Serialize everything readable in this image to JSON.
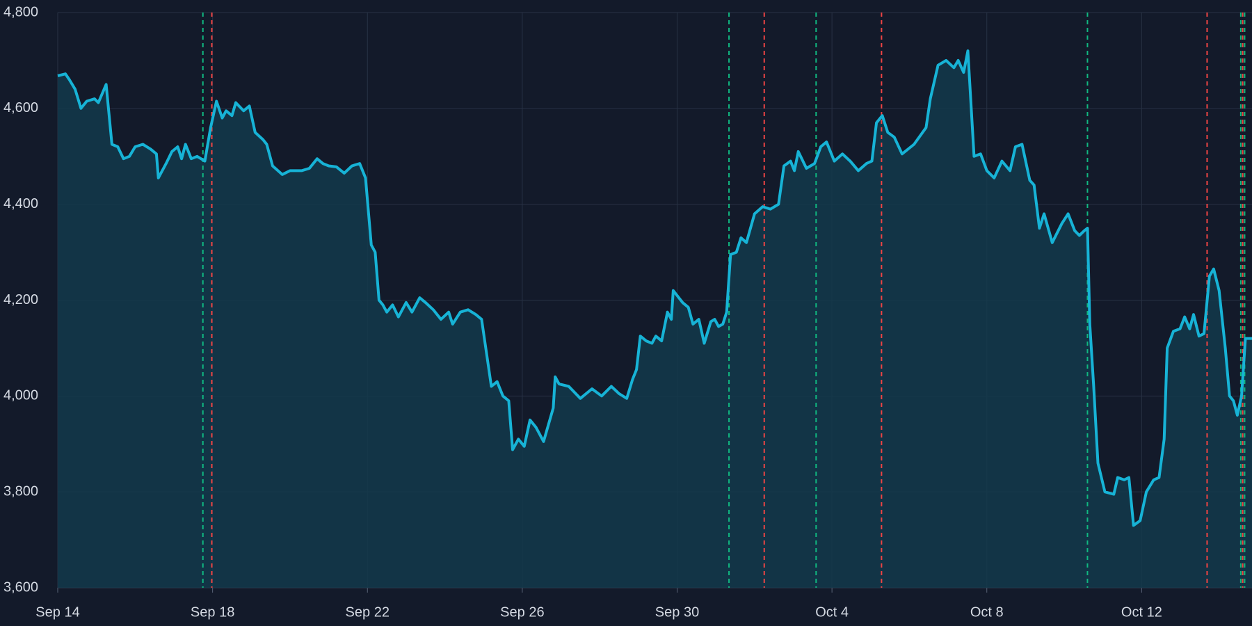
{
  "chart_data": {
    "type": "area",
    "color": "#17b3d6",
    "fill": "#13394b",
    "grid": true,
    "xlim": [
      0,
      30.85
    ],
    "xticks": [
      {
        "value": 0,
        "label": "Sep 14"
      },
      {
        "value": 4,
        "label": "Sep 18"
      },
      {
        "value": 8,
        "label": "Sep 22"
      },
      {
        "value": 12,
        "label": "Sep 26"
      },
      {
        "value": 16,
        "label": "Sep 30"
      },
      {
        "value": 20,
        "label": "Oct 4"
      },
      {
        "value": 24,
        "label": "Oct 8"
      },
      {
        "value": 28,
        "label": "Oct 12"
      }
    ],
    "ylim": [
      3600,
      4800
    ],
    "yticks": [
      {
        "value": 3600,
        "label": "3,600"
      },
      {
        "value": 3800,
        "label": "3,800"
      },
      {
        "value": 4000,
        "label": "4,000"
      },
      {
        "value": 4200,
        "label": "4,200"
      },
      {
        "value": 4400,
        "label": "4,400"
      },
      {
        "value": 4600,
        "label": "4,600"
      },
      {
        "value": 4800,
        "label": "4,800"
      }
    ],
    "x": [
      0,
      0.2,
      0.3,
      0.45,
      0.6,
      0.75,
      0.95,
      1.05,
      1.25,
      1.4,
      1.55,
      1.7,
      1.85,
      2.0,
      2.2,
      2.4,
      2.55,
      2.6,
      2.8,
      2.95,
      3.1,
      3.2,
      3.3,
      3.45,
      3.6,
      3.8,
      3.95,
      4.1,
      4.25,
      4.35,
      4.5,
      4.6,
      4.8,
      4.95,
      5.1,
      5.3,
      5.4,
      5.55,
      5.8,
      6.0,
      6.3,
      6.5,
      6.7,
      6.85,
      7.0,
      7.2,
      7.4,
      7.6,
      7.8,
      7.95,
      8.1,
      8.2,
      8.3,
      8.4,
      8.5,
      8.65,
      8.8,
      9.0,
      9.15,
      9.35,
      9.5,
      9.7,
      9.9,
      10.1,
      10.2,
      10.4,
      10.6,
      10.8,
      10.95,
      11.2,
      11.35,
      11.5,
      11.65,
      11.75,
      11.9,
      12.05,
      12.2,
      12.35,
      12.55,
      12.8,
      12.85,
      12.95,
      13.2,
      13.5,
      13.8,
      14.05,
      14.3,
      14.5,
      14.7,
      14.85,
      14.95,
      15.05,
      15.2,
      15.35,
      15.45,
      15.6,
      15.75,
      15.85,
      15.9,
      16.14,
      16.29,
      16.41,
      16.56,
      16.7,
      16.87,
      16.97,
      17.07,
      17.18,
      17.28,
      17.38,
      17.53,
      17.65,
      17.79,
      18.0,
      18.21,
      18.41,
      18.62,
      18.76,
      18.93,
      19.03,
      19.13,
      19.34,
      19.55,
      19.71,
      19.86,
      20.06,
      20.27,
      20.47,
      20.68,
      20.89,
      21.03,
      21.15,
      21.3,
      21.44,
      21.61,
      21.81,
      22.12,
      22.43,
      22.54,
      22.74,
      22.95,
      23.15,
      23.26,
      23.4,
      23.51,
      23.67,
      23.84,
      24.0,
      24.19,
      24.39,
      24.6,
      24.74,
      24.91,
      25.11,
      25.22,
      25.36,
      25.48,
      25.69,
      25.94,
      26.1,
      26.27,
      26.39,
      26.52,
      26.6,
      26.66,
      26.76,
      26.87,
      27.05,
      27.28,
      27.38,
      27.55,
      27.67,
      27.79,
      27.96,
      28.12,
      28.31,
      28.45,
      28.58,
      28.66,
      28.82,
      28.99,
      29.11,
      29.24,
      29.34,
      29.48,
      29.61,
      29.75,
      29.86,
      30.0,
      30.16,
      30.27,
      30.37,
      30.47,
      30.58,
      30.68,
      30.85
    ],
    "values": [
      4668,
      4672,
      4660,
      4640,
      4600,
      4615,
      4620,
      4612,
      4650,
      4525,
      4520,
      4495,
      4500,
      4520,
      4525,
      4515,
      4505,
      4455,
      4485,
      4510,
      4520,
      4495,
      4525,
      4495,
      4500,
      4490,
      4560,
      4615,
      4580,
      4595,
      4585,
      4612,
      4595,
      4605,
      4550,
      4535,
      4525,
      4480,
      4462,
      4470,
      4470,
      4475,
      4495,
      4485,
      4480,
      4478,
      4465,
      4480,
      4485,
      4455,
      4315,
      4300,
      4200,
      4190,
      4175,
      4190,
      4165,
      4195,
      4175,
      4205,
      4195,
      4180,
      4160,
      4175,
      4150,
      4175,
      4180,
      4170,
      4160,
      4020,
      4030,
      4000,
      3990,
      3888,
      3910,
      3895,
      3950,
      3935,
      3905,
      3975,
      4040,
      4025,
      4020,
      3995,
      4015,
      4000,
      4020,
      4005,
      3995,
      4035,
      4055,
      4125,
      4115,
      4110,
      4125,
      4115,
      4175,
      4160,
      4220,
      4195,
      4185,
      4150,
      4160,
      4110,
      4155,
      4160,
      4145,
      4150,
      4175,
      4295,
      4300,
      4330,
      4320,
      4380,
      4395,
      4390,
      4400,
      4480,
      4490,
      4470,
      4510,
      4475,
      4485,
      4520,
      4530,
      4490,
      4505,
      4490,
      4470,
      4485,
      4490,
      4570,
      4585,
      4550,
      4540,
      4505,
      4525,
      4560,
      4620,
      4690,
      4700,
      4685,
      4700,
      4675,
      4720,
      4500,
      4505,
      4470,
      4455,
      4490,
      4470,
      4520,
      4525,
      4450,
      4440,
      4350,
      4380,
      4320,
      4360,
      4380,
      4345,
      4335,
      4345,
      4350,
      4150,
      4020,
      3860,
      3800,
      3795,
      3830,
      3825,
      3830,
      3730,
      3740,
      3800,
      3825,
      3830,
      3910,
      4100,
      4135,
      4140,
      4165,
      4140,
      4170,
      4125,
      4130,
      4250,
      4265,
      4220,
      4100,
      4000,
      3990,
      3960,
      4000,
      4120,
      4120
    ],
    "vlines": [
      {
        "color": "#10b981",
        "x": [
          3.75,
          17.34,
          19.59,
          26.6,
          30.56,
          30.66
        ]
      },
      {
        "color": "#ef4444",
        "x": [
          3.98,
          18.25,
          21.28,
          29.69,
          30.61
        ]
      }
    ]
  }
}
